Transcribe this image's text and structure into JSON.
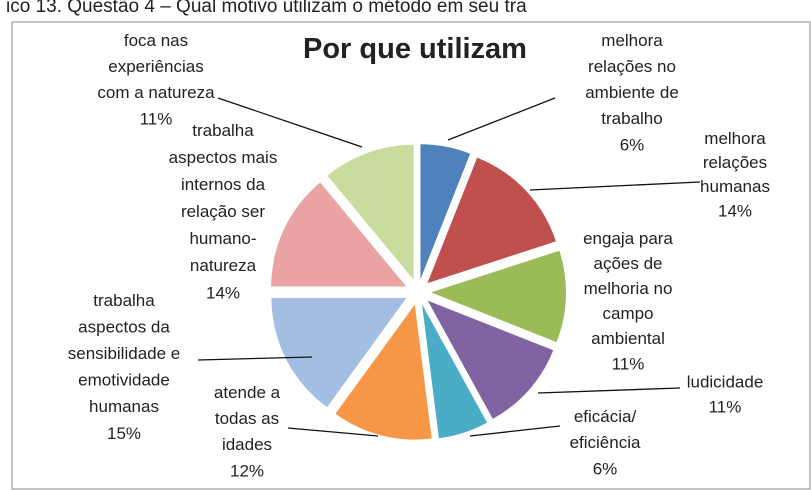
{
  "caption": "ico 13. Questão 4 – Qual motivo utilizam o método em seu tra",
  "chart_data": {
    "type": "pie",
    "title": "Por que utilizam",
    "categories": [
      "melhora\nrelações no\nambiente de\ntrabalho",
      "melhora\nrelações\nhumanas",
      "engaja para\nações de\nmelhoria no\ncampo\nambiental",
      "ludicidade",
      "eficácia/\neficiência",
      "atende a\ntodas as\nidades",
      "trabalha\naspectos da\nsensibilidade e\nemotividade\nhumanas",
      "trabalha\naspectos mais\ninternos da\nrelação ser\nhumano-\nnatureza",
      "foca nas\nexperiências\ncom a natureza"
    ],
    "values": [
      6,
      14,
      11,
      11,
      6,
      12,
      15,
      14,
      11
    ],
    "value_labels": [
      "6%",
      "14%",
      "11%",
      "11%",
      "6%",
      "12%",
      "15%",
      "14%",
      "11%"
    ],
    "colors": [
      "#4f81bd",
      "#c0504d",
      "#9bbb59",
      "#8064a2",
      "#4bacc6",
      "#f79646",
      "#a3bde3",
      "#e9a3a2",
      "#c7dc9d"
    ]
  }
}
